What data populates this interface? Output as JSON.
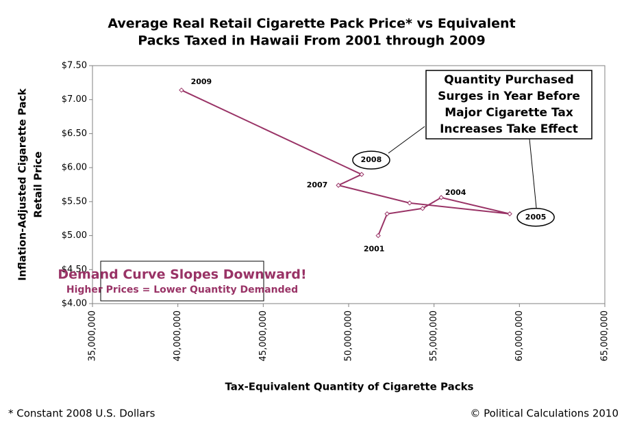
{
  "chart_data": {
    "type": "line",
    "title": [
      "Average Real Retail Cigarette Pack Price* vs Equivalent",
      "Packs Taxed in Hawaii From 2001 through 2009"
    ],
    "x_label": "Tax-Equivalent Quantity of Cigarette Packs",
    "y_label": [
      "Inflation-Adjusted Cigarette Pack",
      "Retail Price"
    ],
    "x": [
      51730000,
      52250000,
      54330000,
      55420000,
      59430000,
      53570000,
      49400000,
      50760000,
      40210000
    ],
    "values": [
      5.0,
      5.32,
      5.4,
      5.56,
      5.32,
      5.48,
      5.74,
      5.9,
      7.14
    ],
    "point_labels": [
      "2001",
      null,
      null,
      "2004",
      "2005",
      null,
      "2007",
      "2008",
      "2009"
    ],
    "color": "#993366",
    "xlim": [
      35000000,
      65000000
    ],
    "xticks": [
      {
        "value": 35000000,
        "label": "35,000,000"
      },
      {
        "value": 40000000,
        "label": "40,000,000"
      },
      {
        "value": 45000000,
        "label": "45,000,000"
      },
      {
        "value": 50000000,
        "label": "50,000,000"
      },
      {
        "value": 55000000,
        "label": "55,000,000"
      },
      {
        "value": 60000000,
        "label": "60,000,000"
      },
      {
        "value": 65000000,
        "label": "65,000,000"
      }
    ],
    "ylim": [
      4.0,
      7.5
    ],
    "yticks": [
      {
        "value": 4.0,
        "label": "$4.00"
      },
      {
        "value": 4.5,
        "label": "$4.50"
      },
      {
        "value": 5.0,
        "label": "$5.00"
      },
      {
        "value": 5.5,
        "label": "$5.50"
      },
      {
        "value": 6.0,
        "label": "$6.00"
      },
      {
        "value": 6.5,
        "label": "$6.50"
      },
      {
        "value": 7.0,
        "label": "$7.00"
      },
      {
        "value": 7.5,
        "label": "$7.50"
      }
    ],
    "annotation": [
      "Quantity Purchased",
      "Surges in Year Before",
      "Major Cigarette Tax",
      "Increases Take Effect"
    ],
    "callout": {
      "headline": "Demand Curve Slopes Downward!",
      "subline": "Higher Prices = Lower Quantity Demanded"
    },
    "footnote": "* Constant 2008 U.S. Dollars",
    "credit": "© Political Calculations 2010"
  }
}
